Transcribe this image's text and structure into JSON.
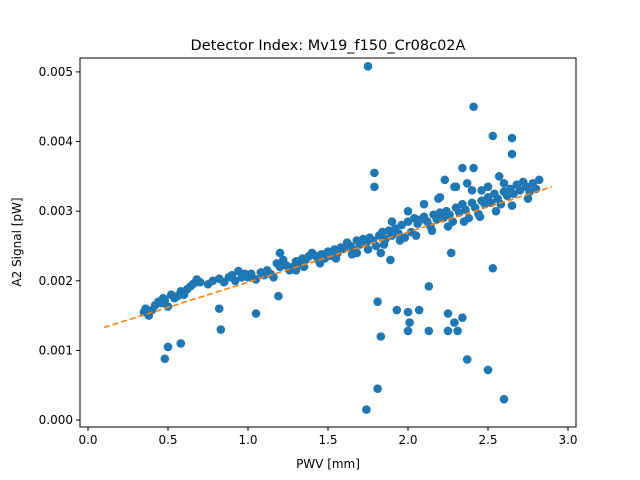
{
  "chart_data": {
    "type": "scatter",
    "title": "Detector Index: Mv19_f150_Cr08c02A",
    "xlabel": "PWV [mm]",
    "ylabel": "A2 Signal [pW]",
    "xlim": [
      -0.05,
      3.05
    ],
    "ylim": [
      -0.0001,
      0.0052
    ],
    "xticks": [
      0.0,
      0.5,
      1.0,
      1.5,
      2.0,
      2.5,
      3.0
    ],
    "xtick_labels": [
      "0.0",
      "0.5",
      "1.0",
      "1.5",
      "2.0",
      "2.5",
      "3.0"
    ],
    "yticks": [
      0.0,
      0.001,
      0.002,
      0.003,
      0.004,
      0.005
    ],
    "ytick_labels": [
      "0.000",
      "0.001",
      "0.002",
      "0.003",
      "0.004",
      "0.005"
    ],
    "colors": {
      "points": "#1f77b4",
      "fit": "#ff7f0e",
      "axes": "#000000"
    },
    "series": [
      {
        "name": "data",
        "kind": "scatter",
        "points": [
          [
            0.35,
            0.00155
          ],
          [
            0.36,
            0.0016
          ],
          [
            0.38,
            0.0015
          ],
          [
            0.4,
            0.00158
          ],
          [
            0.42,
            0.00165
          ],
          [
            0.44,
            0.0017
          ],
          [
            0.46,
            0.00168
          ],
          [
            0.47,
            0.00175
          ],
          [
            0.48,
            0.00172
          ],
          [
            0.5,
            0.00163
          ],
          [
            0.52,
            0.0018
          ],
          [
            0.54,
            0.00175
          ],
          [
            0.56,
            0.00178
          ],
          [
            0.58,
            0.00185
          ],
          [
            0.6,
            0.0018
          ],
          [
            0.62,
            0.00188
          ],
          [
            0.64,
            0.00192
          ],
          [
            0.66,
            0.00196
          ],
          [
            0.68,
            0.00202
          ],
          [
            0.7,
            0.00198
          ],
          [
            0.75,
            0.00195
          ],
          [
            0.78,
            0.002
          ],
          [
            0.82,
            0.00203
          ],
          [
            0.85,
            0.00198
          ],
          [
            0.88,
            0.00205
          ],
          [
            0.9,
            0.00208
          ],
          [
            0.92,
            0.002
          ],
          [
            0.94,
            0.00214
          ],
          [
            0.96,
            0.00205
          ],
          [
            0.98,
            0.0021
          ],
          [
            1.0,
            0.00205
          ],
          [
            1.02,
            0.0021
          ],
          [
            1.05,
            0.00202
          ],
          [
            1.08,
            0.00212
          ],
          [
            1.1,
            0.00208
          ],
          [
            1.12,
            0.00215
          ],
          [
            1.14,
            0.0021
          ],
          [
            1.16,
            0.00205
          ],
          [
            1.18,
            0.00225
          ],
          [
            1.2,
            0.0022
          ],
          [
            1.22,
            0.0023
          ],
          [
            1.24,
            0.00222
          ],
          [
            1.26,
            0.00215
          ],
          [
            1.28,
            0.0022
          ],
          [
            1.3,
            0.00228
          ],
          [
            1.32,
            0.00225
          ],
          [
            1.34,
            0.00232
          ],
          [
            1.36,
            0.0023
          ],
          [
            1.38,
            0.00235
          ],
          [
            1.4,
            0.0024
          ],
          [
            1.42,
            0.00236
          ],
          [
            1.44,
            0.0023
          ],
          [
            1.46,
            0.00238
          ],
          [
            1.48,
            0.00232
          ],
          [
            1.5,
            0.00242
          ],
          [
            1.52,
            0.00236
          ],
          [
            1.54,
            0.00245
          ],
          [
            1.56,
            0.0024
          ],
          [
            1.58,
            0.00248
          ],
          [
            1.6,
            0.00246
          ],
          [
            1.62,
            0.00255
          ],
          [
            1.64,
            0.0025
          ],
          [
            1.66,
            0.00245
          ],
          [
            1.68,
            0.00258
          ],
          [
            1.7,
            0.00252
          ],
          [
            1.72,
            0.0026
          ],
          [
            1.74,
            0.00255
          ],
          [
            1.76,
            0.00262
          ],
          [
            1.78,
            0.00258
          ],
          [
            1.8,
            0.0025
          ],
          [
            1.82,
            0.00265
          ],
          [
            1.84,
            0.0027
          ],
          [
            1.86,
            0.0026
          ],
          [
            1.88,
            0.00272
          ],
          [
            1.9,
            0.00265
          ],
          [
            1.92,
            0.00275
          ],
          [
            1.94,
            0.00268
          ],
          [
            1.96,
            0.0028
          ],
          [
            1.98,
            0.00262
          ],
          [
            2.0,
            0.00285
          ],
          [
            2.02,
            0.0027
          ],
          [
            2.04,
            0.0029
          ],
          [
            2.06,
            0.00282
          ],
          [
            2.08,
            0.00288
          ],
          [
            2.1,
            0.00292
          ],
          [
            2.12,
            0.00285
          ],
          [
            2.14,
            0.00278
          ],
          [
            2.16,
            0.00295
          ],
          [
            2.18,
            0.00288
          ],
          [
            2.2,
            0.00298
          ],
          [
            2.22,
            0.0029
          ],
          [
            2.24,
            0.003
          ],
          [
            2.26,
            0.00295
          ],
          [
            2.28,
            0.00285
          ],
          [
            2.3,
            0.00305
          ],
          [
            2.32,
            0.00298
          ],
          [
            2.34,
            0.0031
          ],
          [
            2.36,
            0.00302
          ],
          [
            2.38,
            0.0029
          ],
          [
            2.4,
            0.00312
          ],
          [
            2.42,
            0.00305
          ],
          [
            2.44,
            0.00296
          ],
          [
            2.46,
            0.00315
          ],
          [
            2.48,
            0.0031
          ],
          [
            2.5,
            0.0032
          ],
          [
            2.52,
            0.00312
          ],
          [
            2.54,
            0.00325
          ],
          [
            2.56,
            0.00318
          ],
          [
            2.58,
            0.0031
          ],
          [
            2.6,
            0.00328
          ],
          [
            2.62,
            0.00322
          ],
          [
            2.64,
            0.00332
          ],
          [
            2.66,
            0.00325
          ],
          [
            2.68,
            0.00338
          ],
          [
            2.7,
            0.0033
          ],
          [
            2.72,
            0.00342
          ],
          [
            2.74,
            0.00335
          ],
          [
            2.76,
            0.00328
          ],
          [
            2.78,
            0.0034
          ],
          [
            2.8,
            0.00332
          ],
          [
            2.82,
            0.00345
          ],
          [
            1.3,
            0.00215
          ],
          [
            1.35,
            0.0022
          ],
          [
            1.45,
            0.00225
          ],
          [
            1.55,
            0.00232
          ],
          [
            1.65,
            0.00238
          ],
          [
            1.75,
            0.00245
          ],
          [
            1.85,
            0.00252
          ],
          [
            1.95,
            0.00258
          ],
          [
            2.05,
            0.00265
          ],
          [
            2.15,
            0.00272
          ],
          [
            2.25,
            0.00278
          ],
          [
            2.35,
            0.00285
          ],
          [
            2.45,
            0.00292
          ],
          [
            2.55,
            0.003
          ],
          [
            2.65,
            0.00308
          ],
          [
            2.75,
            0.00318
          ],
          [
            1.2,
            0.0024
          ],
          [
            1.9,
            0.00285
          ],
          [
            2.0,
            0.003
          ],
          [
            2.1,
            0.0031
          ],
          [
            2.2,
            0.0032
          ],
          [
            2.3,
            0.00335
          ],
          [
            2.4,
            0.0033
          ],
          [
            2.5,
            0.00335
          ],
          [
            2.6,
            0.0034
          ],
          [
            1.75,
            0.00508
          ],
          [
            2.41,
            0.0045
          ],
          [
            2.53,
            0.00408
          ],
          [
            2.65,
            0.00405
          ],
          [
            2.65,
            0.00382
          ],
          [
            2.34,
            0.00362
          ],
          [
            2.41,
            0.00362
          ],
          [
            1.79,
            0.00355
          ],
          [
            1.79,
            0.00335
          ],
          [
            2.23,
            0.00345
          ],
          [
            2.29,
            0.00335
          ],
          [
            2.57,
            0.0035
          ],
          [
            2.37,
            0.0034
          ],
          [
            2.46,
            0.0033
          ],
          [
            2.19,
            0.00318
          ],
          [
            1.57,
            0.00245
          ],
          [
            1.68,
            0.0024
          ],
          [
            1.83,
            0.0024
          ],
          [
            1.89,
            0.0023
          ],
          [
            2.27,
            0.0024
          ],
          [
            2.53,
            0.00218
          ],
          [
            0.5,
            0.00105
          ],
          [
            0.48,
            0.00088
          ],
          [
            0.58,
            0.0011
          ],
          [
            0.82,
            0.0016
          ],
          [
            0.83,
            0.0013
          ],
          [
            1.05,
            0.00153
          ],
          [
            1.19,
            0.00178
          ],
          [
            2.13,
            0.00192
          ],
          [
            1.81,
            0.0017
          ],
          [
            1.83,
            0.0012
          ],
          [
            1.93,
            0.00158
          ],
          [
            2.0,
            0.00155
          ],
          [
            2.01,
            0.0014
          ],
          [
            2.0,
            0.00128
          ],
          [
            2.07,
            0.00158
          ],
          [
            2.13,
            0.00128
          ],
          [
            2.25,
            0.00153
          ],
          [
            2.25,
            0.00128
          ],
          [
            2.29,
            0.0014
          ],
          [
            2.31,
            0.00128
          ],
          [
            2.34,
            0.00147
          ],
          [
            2.37,
            0.00087
          ],
          [
            2.5,
            0.00072
          ],
          [
            2.6,
            0.0003
          ],
          [
            1.81,
            0.00045
          ],
          [
            1.74,
            0.00015
          ]
        ]
      },
      {
        "name": "fit",
        "kind": "dashed-line",
        "points": [
          [
            0.1,
            0.00133
          ],
          [
            2.9,
            0.00335
          ]
        ]
      }
    ]
  }
}
